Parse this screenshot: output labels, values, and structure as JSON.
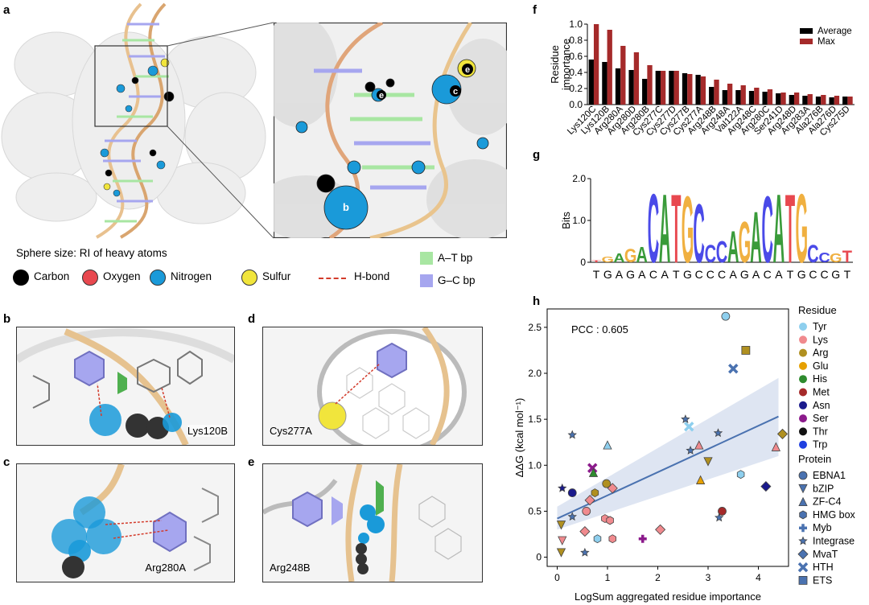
{
  "panels": {
    "a": "a",
    "b": "b",
    "c": "c",
    "d": "d",
    "e": "e",
    "f": "f",
    "g": "g",
    "h": "h"
  },
  "panel_a": {
    "sphere_caption": "Sphere size: RI of heavy atoms",
    "legend": [
      {
        "label": "Carbon",
        "color": "#000000"
      },
      {
        "label": "Oxygen",
        "color": "#e8484f"
      },
      {
        "label": "Nitrogen",
        "color": "#1a9ad9"
      },
      {
        "label": "Sulfur",
        "color": "#f1e53c"
      }
    ],
    "hbond_label": "H-bond",
    "hbond_color": "#d33b2b",
    "bp_legend": [
      {
        "label": "A–T bp",
        "color": "#a8e6a2"
      },
      {
        "label": "G–C bp",
        "color": "#a6a6ef"
      }
    ],
    "zoom_marks": [
      "b",
      "c",
      "d",
      "e"
    ]
  },
  "structure_panels": [
    {
      "id": "b",
      "label": "Lys120B"
    },
    {
      "id": "d",
      "label": "Cys277A"
    },
    {
      "id": "c",
      "label": "Arg280A"
    },
    {
      "id": "e",
      "label": "Arg248B"
    }
  ],
  "chart_data": [
    {
      "panel": "f",
      "type": "bar",
      "ylabel": "Residue importance",
      "ylim": [
        0,
        1.0
      ],
      "yticks": [
        "0.0",
        "0.2",
        "0.4",
        "0.6",
        "0.8",
        "1.0"
      ],
      "categories": [
        "Lys120C",
        "Lys120B",
        "Arg280A",
        "Arg280D",
        "Arg280B",
        "Cys277C",
        "Cys277D",
        "Cys277B",
        "Cys277A",
        "Arg248B",
        "Arg248A",
        "Val122A",
        "Arg248C",
        "Arg280C",
        "Ser241D",
        "Arg248D",
        "Arg283A",
        "Ala276B",
        "Ala276D",
        "Cys275D"
      ],
      "series": [
        {
          "name": "Average",
          "color": "#000000",
          "values": [
            0.56,
            0.53,
            0.45,
            0.43,
            0.32,
            0.42,
            0.42,
            0.39,
            0.37,
            0.22,
            0.18,
            0.18,
            0.17,
            0.16,
            0.14,
            0.12,
            0.11,
            0.1,
            0.09,
            0.1
          ]
        },
        {
          "name": "Max",
          "color": "#a52a2a",
          "values": [
            1.0,
            0.93,
            0.73,
            0.65,
            0.49,
            0.42,
            0.42,
            0.38,
            0.35,
            0.31,
            0.26,
            0.24,
            0.21,
            0.19,
            0.15,
            0.15,
            0.13,
            0.12,
            0.11,
            0.1
          ]
        }
      ],
      "legend_position": "top-right"
    },
    {
      "panel": "g",
      "type": "sequence-logo",
      "ylabel": "Bits",
      "ylim": [
        0,
        2.0
      ],
      "yticks": [
        "0",
        "1.0",
        "2.0"
      ],
      "sequence": [
        "T",
        "G",
        "A",
        "G",
        "A",
        "C",
        "A",
        "T",
        "G",
        "C",
        "C",
        "C",
        "A",
        "G",
        "A",
        "C",
        "A",
        "T",
        "G",
        "C",
        "C",
        "G",
        "T"
      ],
      "heights": [
        0.05,
        0.15,
        0.22,
        0.35,
        0.4,
        1.75,
        1.75,
        1.75,
        1.7,
        1.5,
        0.45,
        0.55,
        0.8,
        1.05,
        1.3,
        1.7,
        1.75,
        1.75,
        1.75,
        0.45,
        0.25,
        0.22,
        0.3
      ],
      "colors": {
        "A": "#3a9b3a",
        "C": "#4a4ae8",
        "G": "#f0b040",
        "T": "#e8484f"
      }
    },
    {
      "panel": "h",
      "type": "scatter",
      "xlabel": "LogSum aggregated residue importance",
      "ylabel": "ΔΔG (kcal mol⁻¹)",
      "xlim": [
        -0.2,
        4.6
      ],
      "ylim": [
        -0.1,
        2.7
      ],
      "xticks": [
        "0",
        "1",
        "2",
        "3",
        "4"
      ],
      "yticks": [
        "0",
        "0.5",
        "1.0",
        "1.5",
        "2.0",
        "2.5"
      ],
      "annotation": "PCC : 0.605",
      "fit": {
        "x0": 0.0,
        "y0": 0.42,
        "x1": 4.4,
        "y1": 1.53
      },
      "residue_legend_title": "Residue",
      "residue_legend": [
        {
          "label": "Tyr",
          "color": "#8ecfee"
        },
        {
          "label": "Lys",
          "color": "#f08a8e"
        },
        {
          "label": "Arg",
          "color": "#b09020"
        },
        {
          "label": "Glu",
          "color": "#e6a000"
        },
        {
          "label": "His",
          "color": "#2e8b2e"
        },
        {
          "label": "Met",
          "color": "#a52a2a"
        },
        {
          "label": "Asn",
          "color": "#1a1a8c"
        },
        {
          "label": "Ser",
          "color": "#8b1a8b"
        },
        {
          "label": "Thr",
          "color": "#111111"
        },
        {
          "label": "Trp",
          "color": "#1f3fe0"
        }
      ],
      "protein_legend_title": "Protein",
      "protein_legend": [
        {
          "label": "EBNA1",
          "marker": "circle"
        },
        {
          "label": "bZIP",
          "marker": "triangle-down"
        },
        {
          "label": "ZF-C4",
          "marker": "triangle-up"
        },
        {
          "label": "HMG box",
          "marker": "hexagon"
        },
        {
          "label": "Myb",
          "marker": "plus"
        },
        {
          "label": "Integrase",
          "marker": "star"
        },
        {
          "label": "MvaT",
          "marker": "diamond"
        },
        {
          "label": "HTH",
          "marker": "x"
        },
        {
          "label": "ETS",
          "marker": "square"
        }
      ],
      "points": [
        {
          "x": 3.35,
          "y": 2.62,
          "m": "circle",
          "c": "#8ecfee"
        },
        {
          "x": 3.75,
          "y": 2.25,
          "m": "square",
          "c": "#b09020"
        },
        {
          "x": 3.5,
          "y": 2.05,
          "m": "x",
          "c": "#4a72b0"
        },
        {
          "x": 2.55,
          "y": 1.5,
          "m": "star",
          "c": "#4a72b0"
        },
        {
          "x": 2.62,
          "y": 1.42,
          "m": "x",
          "c": "#8ecfee"
        },
        {
          "x": 3.2,
          "y": 1.35,
          "m": "star",
          "c": "#4a72b0"
        },
        {
          "x": 4.48,
          "y": 1.34,
          "m": "diamond",
          "c": "#b09020"
        },
        {
          "x": 0.3,
          "y": 1.33,
          "m": "star",
          "c": "#4a72b0"
        },
        {
          "x": 1.0,
          "y": 1.22,
          "m": "triangle-up",
          "c": "#8ecfee"
        },
        {
          "x": 2.82,
          "y": 1.22,
          "m": "triangle-up",
          "c": "#f08a8e"
        },
        {
          "x": 4.35,
          "y": 1.2,
          "m": "triangle-up",
          "c": "#f08a8e"
        },
        {
          "x": 2.65,
          "y": 1.16,
          "m": "star",
          "c": "#4a72b0"
        },
        {
          "x": 3.0,
          "y": 1.04,
          "m": "triangle-down",
          "c": "#b09020"
        },
        {
          "x": 0.7,
          "y": 0.97,
          "m": "x",
          "c": "#8b1a8b"
        },
        {
          "x": 0.72,
          "y": 0.92,
          "m": "triangle-up",
          "c": "#2e8b2e"
        },
        {
          "x": 3.65,
          "y": 0.9,
          "m": "hexagon",
          "c": "#8ecfee"
        },
        {
          "x": 2.85,
          "y": 0.84,
          "m": "triangle-up",
          "c": "#e6a000"
        },
        {
          "x": 0.98,
          "y": 0.8,
          "m": "circle",
          "c": "#b09020"
        },
        {
          "x": 4.15,
          "y": 0.77,
          "m": "diamond",
          "c": "#1a1a8c"
        },
        {
          "x": 0.1,
          "y": 0.75,
          "m": "star",
          "c": "#1a1a8c"
        },
        {
          "x": 1.1,
          "y": 0.75,
          "m": "diamond",
          "c": "#f08a8e"
        },
        {
          "x": 0.75,
          "y": 0.7,
          "m": "hexagon",
          "c": "#b09020"
        },
        {
          "x": 0.3,
          "y": 0.7,
          "m": "circle",
          "c": "#1a1a8c"
        },
        {
          "x": 0.65,
          "y": 0.62,
          "m": "diamond",
          "c": "#f08a8e"
        },
        {
          "x": 3.28,
          "y": 0.5,
          "m": "circle",
          "c": "#a52a2a"
        },
        {
          "x": 0.58,
          "y": 0.5,
          "m": "circle",
          "c": "#f08a8e"
        },
        {
          "x": 0.3,
          "y": 0.44,
          "m": "star",
          "c": "#4a72b0"
        },
        {
          "x": 0.95,
          "y": 0.42,
          "m": "hexagon",
          "c": "#f08a8e"
        },
        {
          "x": 3.22,
          "y": 0.43,
          "m": "star",
          "c": "#4a72b0"
        },
        {
          "x": 1.05,
          "y": 0.4,
          "m": "hexagon",
          "c": "#f08a8e"
        },
        {
          "x": 0.08,
          "y": 0.35,
          "m": "triangle-down",
          "c": "#b09020"
        },
        {
          "x": 2.05,
          "y": 0.3,
          "m": "diamond",
          "c": "#f08a8e"
        },
        {
          "x": 0.55,
          "y": 0.28,
          "m": "diamond",
          "c": "#f08a8e"
        },
        {
          "x": 0.8,
          "y": 0.2,
          "m": "hexagon",
          "c": "#8ecfee"
        },
        {
          "x": 1.1,
          "y": 0.2,
          "m": "hexagon",
          "c": "#f08a8e"
        },
        {
          "x": 1.7,
          "y": 0.2,
          "m": "plus",
          "c": "#8b1a8b"
        },
        {
          "x": 0.1,
          "y": 0.18,
          "m": "triangle-down",
          "c": "#f08a8e"
        },
        {
          "x": 0.08,
          "y": 0.05,
          "m": "triangle-down",
          "c": "#b09020"
        },
        {
          "x": 0.55,
          "y": 0.05,
          "m": "star",
          "c": "#4a72b0"
        }
      ]
    }
  ]
}
